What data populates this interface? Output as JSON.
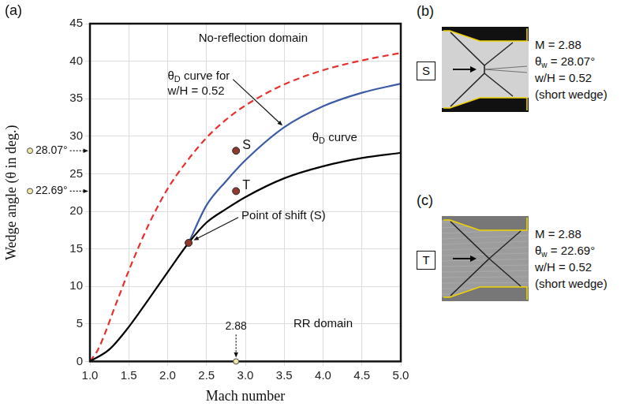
{
  "chart_data": {
    "type": "line",
    "panel_label": "(a)",
    "x_label": "Mach number",
    "y_label": "Wedge angle (θ in deg.)",
    "xlim": [
      1,
      5
    ],
    "ylim": [
      0,
      45
    ],
    "xticks": [
      {
        "value": 1,
        "label": "1.0"
      },
      1.5,
      {
        "value": 2,
        "label": "2.0"
      },
      2.5,
      {
        "value": 3,
        "label": "3.0"
      },
      3.5,
      {
        "value": 4,
        "label": "4.0"
      },
      4.5,
      {
        "value": 5,
        "label": "5.0"
      }
    ],
    "yticks": [
      0,
      5,
      10,
      15,
      20,
      25,
      30,
      35,
      40,
      45
    ],
    "grid": true,
    "series": [
      {
        "type": "line",
        "color": "#000000",
        "line_style": "solid",
        "x": [
          1.0,
          1.25,
          1.5,
          1.75,
          2.0,
          2.27,
          2.5,
          2.75,
          3.0,
          3.5,
          4.0,
          4.5,
          5.0
        ],
        "values": [
          0,
          1.6,
          4.6,
          8.2,
          11.9,
          15.8,
          18.5,
          20.3,
          21.9,
          24.4,
          26.0,
          27.1,
          27.8
        ]
      },
      {
        "type": "line",
        "color": "#e8312f",
        "line_style": "dashed",
        "x": [
          1.0,
          1.1,
          1.2,
          1.3,
          1.4,
          1.5,
          1.75,
          2.0,
          2.25,
          2.5,
          2.75,
          3.0,
          3.5,
          4.0,
          4.5,
          5.0
        ],
        "values": [
          0,
          1.5,
          3.9,
          6.7,
          9.4,
          12.1,
          18.1,
          23.0,
          26.7,
          29.8,
          32.2,
          34.1,
          36.9,
          38.8,
          40.1,
          41.1
        ]
      },
      {
        "type": "line",
        "color": "#3b5ba5",
        "line_style": "solid",
        "x": [
          2.27,
          2.5,
          2.75,
          3.0,
          3.5,
          4.0,
          4.5,
          5.0
        ],
        "values": [
          15.8,
          20.8,
          24.0,
          26.8,
          31.2,
          34.0,
          35.8,
          37.0
        ]
      },
      {
        "type": "scatter",
        "color": "#8e3b2e",
        "marker": "circle",
        "x": [
          2.88,
          2.88,
          2.27
        ],
        "values": [
          28.07,
          22.69,
          15.8
        ],
        "point_labels": [
          "S",
          "T",
          null
        ]
      }
    ],
    "annotations": [
      "No-reflection domain",
      "θD curve for w/H = 0.52",
      "θD curve",
      "Point of shift (S)",
      "RR domain"
    ],
    "marked_values": {
      "x": [
        {
          "value": 2.88,
          "label": "2.88"
        }
      ],
      "y": [
        {
          "value": 28.07,
          "label": "28.07°"
        },
        {
          "value": 22.69,
          "label": "22.69°"
        }
      ]
    }
  },
  "photos": [
    {
      "panel_label": "(b)",
      "tag": "S",
      "lines": [
        "M = 2.88",
        "θw = 28.07°",
        "w/H = 0.52",
        "(short wedge)"
      ]
    },
    {
      "panel_label": "(c)",
      "tag": "T",
      "lines": [
        "M = 2.88",
        "θw = 22.69°",
        "w/H = 0.52",
        "(short wedge)"
      ]
    }
  ]
}
